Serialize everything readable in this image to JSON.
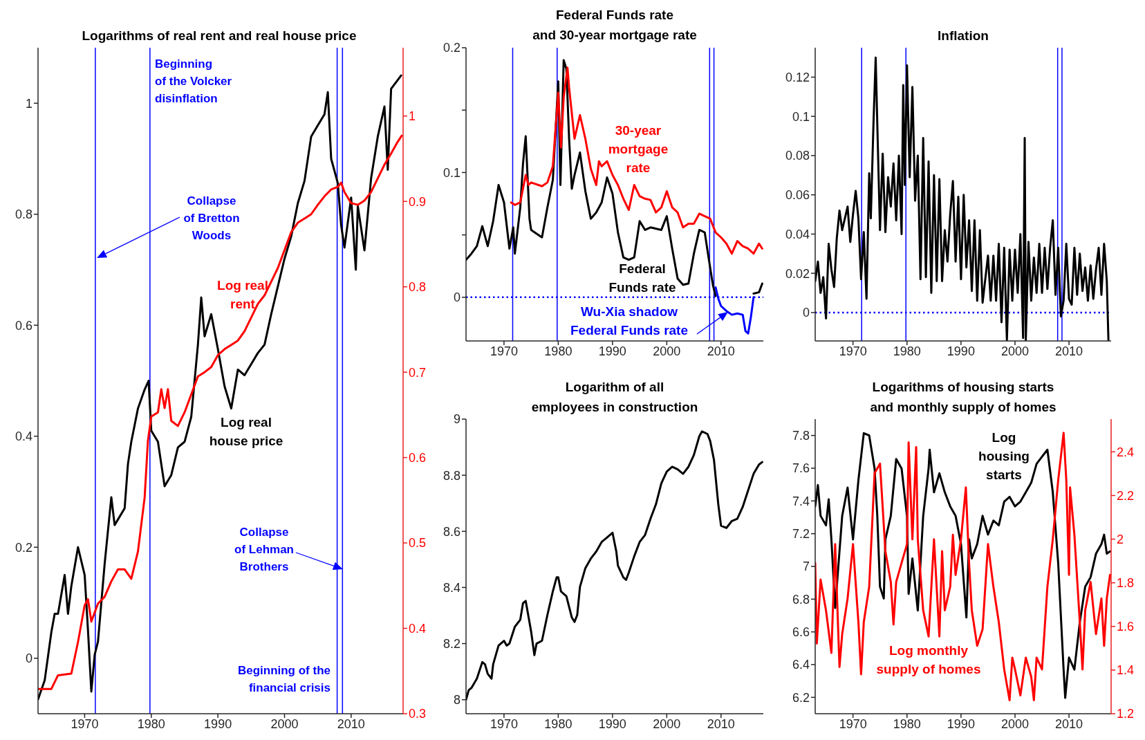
{
  "chart_data": [
    {
      "type": "line",
      "title": "Logarithms of real rent and real house price",
      "xlim": [
        1963,
        2017.8
      ],
      "xticks": [
        1970,
        1980,
        1990,
        2000,
        2010
      ],
      "ylim": [
        -0.1,
        1.1
      ],
      "yticks": [
        0,
        0.2,
        0.4,
        0.6,
        0.8,
        1
      ],
      "y2lim": [
        0.3,
        1.08
      ],
      "y2ticks": [
        0.3,
        0.4,
        0.5,
        0.6,
        0.7,
        0.8,
        0.9,
        1
      ],
      "series": [
        {
          "name": "Log real\nhouse price",
          "color": "#000000",
          "x": [
            1963,
            1964,
            1965,
            1965.5,
            1966,
            1967,
            1967.5,
            1968,
            1969,
            1970,
            1970.5,
            1971,
            1971.5,
            1972,
            1973,
            1974,
            1974.5,
            1975,
            1976,
            1976.5,
            1977,
            1978,
            1979,
            1979.6,
            1980,
            1981,
            1982,
            1983,
            1984,
            1985,
            1986,
            1987,
            1987.5,
            1988,
            1989,
            1990,
            1991,
            1992,
            1993,
            1994,
            1995,
            1996,
            1997,
            1998,
            1999,
            2000,
            2001,
            2002,
            2003,
            2004,
            2005,
            2006,
            2006.5,
            2007,
            2008,
            2008.5,
            2009,
            2010,
            2010.7,
            2011,
            2012,
            2013,
            2014,
            2015,
            2015.5,
            2016,
            2017,
            2017.5
          ],
          "values": [
            -0.074,
            -0.04,
            0.047,
            0.08,
            0.08,
            0.15,
            0.08,
            0.13,
            0.2,
            0.15,
            0.05,
            -0.06,
            0.006,
            0.03,
            0.17,
            0.29,
            0.24,
            0.25,
            0.27,
            0.35,
            0.39,
            0.45,
            0.484,
            0.5,
            0.41,
            0.39,
            0.31,
            0.33,
            0.38,
            0.39,
            0.435,
            0.565,
            0.65,
            0.58,
            0.62,
            0.557,
            0.49,
            0.45,
            0.52,
            0.51,
            0.53,
            0.55,
            0.565,
            0.62,
            0.67,
            0.72,
            0.76,
            0.82,
            0.86,
            0.94,
            0.96,
            0.98,
            1.02,
            0.9,
            0.856,
            0.78,
            0.74,
            0.83,
            0.7,
            0.815,
            0.735,
            0.865,
            0.94,
            0.994,
            0.88,
            1.026,
            1.042,
            1.05
          ]
        },
        {
          "name": "Log real\nrent",
          "color": "#ff0000",
          "axis": "y2",
          "x": [
            1963,
            1965,
            1966,
            1968,
            1969,
            1970,
            1970.5,
            1971,
            1972,
            1973,
            1974,
            1975,
            1976,
            1977,
            1978,
            1979,
            1979.5,
            1980,
            1981,
            1981.5,
            1982,
            1982.5,
            1983,
            1984,
            1985,
            1986,
            1987,
            1988,
            1989,
            1990,
            1991,
            1992,
            1993,
            1994,
            1995,
            1996,
            1997,
            1998,
            1999,
            2000,
            2001,
            2002,
            2003,
            2004,
            2005,
            2006,
            2007,
            2008,
            2008.5,
            2009,
            2010,
            2011,
            2012,
            2013,
            2014,
            2015,
            2016,
            2017,
            2017.6
          ],
          "values": [
            0.329,
            0.329,
            0.345,
            0.347,
            0.384,
            0.427,
            0.434,
            0.408,
            0.429,
            0.437,
            0.455,
            0.469,
            0.469,
            0.458,
            0.49,
            0.553,
            0.62,
            0.648,
            0.653,
            0.68,
            0.658,
            0.68,
            0.643,
            0.637,
            0.653,
            0.674,
            0.695,
            0.7,
            0.706,
            0.72,
            0.727,
            0.732,
            0.737,
            0.748,
            0.764,
            0.78,
            0.79,
            0.806,
            0.822,
            0.843,
            0.864,
            0.875,
            0.88,
            0.885,
            0.896,
            0.906,
            0.914,
            0.917,
            0.922,
            0.911,
            0.898,
            0.896,
            0.901,
            0.911,
            0.927,
            0.943,
            0.956,
            0.97,
            0.977
          ]
        }
      ],
      "ref_lines": [
        {
          "axis": "x",
          "value": 1971.6,
          "color": "#0000ff"
        },
        {
          "axis": "x",
          "value": 1979.8,
          "color": "#0000ff"
        },
        {
          "axis": "x",
          "value": 2007.9,
          "color": "#0000ff"
        },
        {
          "axis": "x",
          "value": 2008.7,
          "color": "#0000ff"
        }
      ],
      "annotations": [
        "Beginning\nof the Volcker\ndisinflation",
        "Collapse\nof Bretton\nWoods",
        "Collapse\nof Lehman\nBrothers",
        "Beginning of the\nfinancial crisis"
      ]
    },
    {
      "type": "line",
      "title": "Federal Funds rate\nand 30-year mortgage rate",
      "xlim": [
        1963,
        2017.8
      ],
      "xticks": [
        1970,
        1980,
        1990,
        2000,
        2010
      ],
      "ylim": [
        -0.035,
        0.2
      ],
      "yticks": [
        0,
        {
          "value": 0.05,
          "label": null
        },
        0.1,
        {
          "value": 0.15,
          "label": null
        },
        0.2
      ],
      "series": [
        {
          "name": "Federal\nFunds rate",
          "color": "#000000",
          "x": [
            1963,
            1964,
            1965,
            1966,
            1967,
            1968,
            1969,
            1970,
            1971,
            1971.7,
            1972,
            1973,
            1973.5,
            1974,
            1974.7,
            1975,
            1977,
            1978,
            1979,
            1980,
            1980.4,
            1981,
            1981.5,
            1982,
            1982.5,
            1983,
            1984,
            1985,
            1986,
            1987,
            1988,
            1989,
            1990,
            1991,
            1992,
            1993,
            1994,
            1995,
            1996,
            1997,
            1999,
            2000,
            2001,
            2002,
            2003,
            2004,
            2005,
            2006,
            2007,
            2007.7,
            2008.5,
            2009,
            2009.5,
            2016,
            2017,
            2017.6
          ],
          "values": [
            0.03,
            0.035,
            0.041,
            0.057,
            0.041,
            0.061,
            0.09,
            0.076,
            0.039,
            0.056,
            0.035,
            0.072,
            0.107,
            0.129,
            0.063,
            0.054,
            0.048,
            0.072,
            0.094,
            0.173,
            0.09,
            0.19,
            0.183,
            0.127,
            0.087,
            0.098,
            0.116,
            0.085,
            0.063,
            0.068,
            0.076,
            0.096,
            0.083,
            0.052,
            0.032,
            0.03,
            0.032,
            0.061,
            0.054,
            0.056,
            0.054,
            0.065,
            0.039,
            0.015,
            0.01,
            0.011,
            0.035,
            0.054,
            0.052,
            0.032,
            0.01,
            0.001,
            null,
            0.003,
            0.004,
            0.011
          ]
        },
        {
          "name": "30-year\nmortgage\nrate",
          "color": "#ff0000",
          "x": [
            1971.3,
            1972,
            1973,
            1974,
            1974.5,
            1975,
            1977,
            1978,
            1979,
            1980,
            1980.5,
            1981,
            1981.7,
            1982,
            1983,
            1984,
            1985,
            1986,
            1987,
            1987.5,
            1988,
            1989,
            1990,
            1991,
            1992,
            1993,
            1994,
            1995,
            1996,
            1997,
            1998,
            1999,
            2000,
            2001,
            2002,
            2003,
            2004,
            2005,
            2006,
            2007,
            2008,
            2009,
            2010,
            2011,
            2012,
            2013,
            2014,
            2015,
            2016,
            2017,
            2017.6
          ],
          "values": [
            0.076,
            0.074,
            0.076,
            0.098,
            0.09,
            0.092,
            0.089,
            0.092,
            0.105,
            0.164,
            0.12,
            0.16,
            0.184,
            0.168,
            0.127,
            0.146,
            0.127,
            0.103,
            0.09,
            0.109,
            0.105,
            0.109,
            0.098,
            0.09,
            0.079,
            0.07,
            0.09,
            0.081,
            0.079,
            0.078,
            0.068,
            0.072,
            0.085,
            0.072,
            0.068,
            0.056,
            0.059,
            0.059,
            0.067,
            0.065,
            0.063,
            0.052,
            0.048,
            0.043,
            0.035,
            0.045,
            0.041,
            0.039,
            0.035,
            0.043,
            0.039
          ]
        },
        {
          "name": "Wu-Xia shadow\nFederal Funds rate",
          "color": "#0000ff",
          "x": [
            2009,
            2009.5,
            2010,
            2011,
            2012,
            2013,
            2014,
            2014.5,
            2015,
            2015.5,
            2016
          ],
          "values": [
            0.008,
            -0.001,
            -0.007,
            -0.011,
            -0.014,
            -0.013,
            -0.014,
            -0.027,
            -0.029,
            -0.016,
            0.0
          ]
        }
      ],
      "ref_lines": [
        {
          "axis": "x",
          "value": 1971.6,
          "color": "#0000ff"
        },
        {
          "axis": "x",
          "value": 1979.8,
          "color": "#0000ff"
        },
        {
          "axis": "x",
          "value": 2007.9,
          "color": "#0000ff"
        },
        {
          "axis": "x",
          "value": 2008.7,
          "color": "#0000ff"
        },
        {
          "axis": "y",
          "value": 0,
          "color": "#0000ff",
          "line_style": "dotted"
        }
      ]
    },
    {
      "type": "line",
      "title": "Inflation",
      "xlim": [
        1963,
        2017.8
      ],
      "xticks": [
        1970,
        1980,
        1990,
        2000,
        2010
      ],
      "ylim": [
        -0.0145,
        0.135
      ],
      "yticks": [
        0,
        0.02,
        0.04,
        0.06,
        0.08,
        0.1,
        0.12
      ],
      "series": [
        {
          "color": "#000000",
          "x": [
            1963,
            1963.5,
            1964,
            1964.5,
            1965,
            1965.5,
            1966,
            1966.5,
            1967,
            1967.5,
            1968,
            1969,
            1969.5,
            1970,
            1970.5,
            1971,
            1971.5,
            1972,
            1972.5,
            1973,
            1973.3,
            1973.8,
            1974.2,
            1974.6,
            1975,
            1975.5,
            1976,
            1976.5,
            1977,
            1977.5,
            1978,
            1978.5,
            1979,
            1979.3,
            1979.6,
            1980,
            1980.5,
            1981,
            1981.5,
            1982,
            1982.5,
            1983,
            1983.5,
            1984,
            1984.5,
            1985,
            1985.5,
            1986,
            1986.5,
            1987,
            1987.5,
            1988,
            1988.5,
            1989,
            1989.5,
            1990,
            1990.5,
            1991,
            1991.5,
            1992,
            1992.5,
            1993,
            1993.5,
            1994,
            1995,
            1995.5,
            1996,
            1996.5,
            1997,
            1997.5,
            1998,
            1998.5,
            1999,
            1999.5,
            2000,
            2000.5,
            2001,
            2001.5,
            2001.8,
            2002,
            2002.5,
            2003,
            2003.5,
            2004,
            2004.5,
            2005,
            2005.5,
            2006,
            2006.5,
            2007,
            2007.5,
            2008,
            2008.5,
            2009,
            2009.5,
            2010,
            2010.5,
            2011,
            2011.5,
            2012,
            2012.5,
            2013,
            2013.5,
            2014,
            2014.5,
            2015,
            2015.5,
            2016,
            2016.5,
            2017,
            2017.3
          ],
          "values": [
            0.016,
            0.026,
            0.01,
            0.018,
            -0.003,
            0.035,
            0.022,
            0.013,
            0.038,
            0.052,
            0.042,
            0.054,
            0.036,
            0.05,
            0.062,
            0.048,
            0.017,
            0.041,
            0.007,
            0.071,
            0.048,
            0.097,
            0.13,
            0.085,
            0.042,
            0.081,
            0.041,
            0.069,
            0.054,
            0.076,
            0.047,
            0.08,
            0.04,
            0.116,
            0.065,
            0.126,
            0.069,
            0.115,
            0.057,
            0.08,
            0.017,
            0.089,
            0.018,
            0.077,
            0.01,
            0.07,
            0.016,
            0.068,
            0.016,
            0.042,
            0.026,
            0.05,
            0.067,
            0.026,
            0.059,
            0.017,
            0.06,
            0.023,
            0.047,
            0.011,
            0.047,
            0.006,
            0.042,
            0.005,
            0.029,
            0.006,
            0.029,
            0.006,
            0.035,
            -0.005,
            0.033,
            -0.014,
            0.032,
            0.006,
            0.032,
            0.01,
            0.04,
            -0.013,
            0.089,
            -0.014,
            0.036,
            0.006,
            0.028,
            0.01,
            0.035,
            0.01,
            0.033,
            0.012,
            0.033,
            0.047,
            0.009,
            0.033,
            -0.002,
            0.006,
            0.035,
            0.007,
            0.004,
            0.033,
            0.009,
            0.03,
            0.011,
            0.023,
            0.006,
            0.024,
            0.007,
            0.022,
            0.033,
            0.009,
            0.035,
            0.016,
            -0.014
          ]
        }
      ],
      "ref_lines": [
        {
          "axis": "x",
          "value": 1971.6,
          "color": "#0000ff"
        },
        {
          "axis": "x",
          "value": 1979.8,
          "color": "#0000ff"
        },
        {
          "axis": "x",
          "value": 2007.9,
          "color": "#0000ff"
        },
        {
          "axis": "x",
          "value": 2008.7,
          "color": "#0000ff"
        },
        {
          "axis": "y",
          "value": 0,
          "color": "#0000ff",
          "line_style": "dotted"
        }
      ]
    },
    {
      "type": "line",
      "title": "Logarithm of all\nemployees in construction",
      "xlim": [
        1963,
        2017.8
      ],
      "xticks": [
        1970,
        1980,
        1990,
        2000,
        2010
      ],
      "ylim": [
        7.95,
        9
      ],
      "yticks": [
        8,
        8.2,
        8.4,
        8.6,
        8.8,
        9
      ],
      "series": [
        {
          "color": "#000000",
          "x": [
            1963,
            1963.5,
            1964,
            1965,
            1966,
            1966.5,
            1967,
            1967.7,
            1968,
            1969,
            1970,
            1970.5,
            1971,
            1972,
            1973,
            1973.5,
            1974,
            1975,
            1975.6,
            1976,
            1977,
            1978,
            1979,
            1979.7,
            1980,
            1980.5,
            1981.5,
            1982.5,
            1983,
            1983.5,
            1984,
            1985,
            1986,
            1987,
            1988,
            1989,
            1990,
            1990.7,
            1991,
            1992,
            1992.5,
            1993,
            1994,
            1995,
            1996,
            1997,
            1998,
            1999,
            2000,
            2001,
            2002,
            2003,
            2004,
            2005,
            2006,
            2006.5,
            2007.5,
            2008,
            2008.7,
            2009.5,
            2010,
            2011,
            2012,
            2013,
            2014,
            2015,
            2016,
            2017,
            2017.6
          ],
          "values": [
            8.0,
            8.034,
            8.042,
            8.075,
            8.134,
            8.126,
            8.092,
            8.075,
            8.126,
            8.193,
            8.21,
            8.193,
            8.2,
            8.26,
            8.285,
            8.344,
            8.352,
            8.243,
            8.159,
            8.2,
            8.21,
            8.302,
            8.386,
            8.436,
            8.436,
            8.386,
            8.369,
            8.293,
            8.277,
            8.302,
            8.402,
            8.469,
            8.503,
            8.528,
            8.562,
            8.578,
            8.595,
            8.528,
            8.478,
            8.436,
            8.427,
            8.453,
            8.511,
            8.562,
            8.587,
            8.645,
            8.696,
            8.771,
            8.813,
            8.83,
            8.821,
            8.805,
            8.83,
            8.872,
            8.939,
            8.956,
            8.947,
            8.922,
            8.855,
            8.696,
            8.62,
            8.612,
            8.637,
            8.645,
            8.687,
            8.746,
            8.805,
            8.838,
            8.847
          ]
        }
      ]
    },
    {
      "type": "line",
      "title": "Logarithms of housing starts\nand monthly supply of homes",
      "xlim": [
        1963,
        2017.8
      ],
      "xticks": [
        1970,
        1980,
        1990,
        2000,
        2010
      ],
      "ylim": [
        6.1,
        7.9
      ],
      "yticks": [
        6.2,
        6.4,
        6.6,
        6.8,
        7,
        7.2,
        7.4,
        7.6,
        7.8
      ],
      "y2lim": [
        1.2,
        2.55
      ],
      "y2ticks": [
        1.2,
        1.4,
        1.6,
        1.8,
        2,
        2.2,
        2.4
      ],
      "series": [
        {
          "name": "Log\nhousing\nstarts",
          "color": "#000000",
          "x": [
            1963,
            1963.5,
            1964,
            1965,
            1965.5,
            1966,
            1966.7,
            1967,
            1968,
            1969,
            1970,
            1971,
            1972,
            1973,
            1974,
            1974.5,
            1975,
            1975.7,
            1976,
            1977,
            1978,
            1979,
            1980,
            1980.3,
            1981,
            1982,
            1983,
            1984,
            1984.2,
            1985,
            1986,
            1987,
            1988,
            1989,
            1990,
            1991,
            1991.5,
            1992,
            1993,
            1994,
            1995,
            1996,
            1997,
            1998,
            1999,
            2000,
            2001,
            2002,
            2003,
            2004,
            2005,
            2006,
            2007,
            2008,
            2009,
            2009.3,
            2010,
            2011,
            2012,
            2013,
            2014,
            2015,
            2016,
            2016.5,
            2017,
            2017.6
          ],
          "values": [
            7.367,
            7.497,
            7.309,
            7.251,
            7.41,
            7.165,
            6.746,
            6.876,
            7.309,
            7.482,
            7.165,
            7.526,
            7.814,
            7.8,
            7.598,
            7.309,
            6.876,
            6.804,
            7.165,
            7.309,
            7.656,
            7.598,
            7.309,
            6.832,
            7.049,
            6.731,
            7.309,
            7.598,
            7.713,
            7.453,
            7.569,
            7.453,
            7.367,
            7.309,
            7.136,
            6.688,
            7.165,
            7.049,
            7.136,
            7.309,
            7.194,
            7.28,
            7.251,
            7.396,
            7.425,
            7.367,
            7.396,
            7.453,
            7.511,
            7.627,
            7.67,
            7.713,
            7.453,
            7.02,
            6.37,
            6.197,
            6.443,
            6.37,
            6.659,
            6.876,
            6.934,
            7.078,
            7.136,
            7.194,
            7.078,
            7.092
          ]
        },
        {
          "name": "Log monthly\nsupply of homes",
          "color": "#ff0000",
          "axis": "y2",
          "x": [
            1963,
            1963.3,
            1964,
            1965,
            1966,
            1966.7,
            1967.5,
            1968,
            1969,
            1970,
            1971,
            1971.5,
            1972,
            1973,
            1974,
            1975,
            1976,
            1977,
            1977.5,
            1978,
            1979,
            1980,
            1980.3,
            1981,
            1981.7,
            1982,
            1983,
            1984,
            1985,
            1986,
            1986.5,
            1987,
            1988,
            1988.5,
            1989,
            1990,
            1990.9,
            1991.5,
            1992,
            1993,
            1994,
            1995,
            1996,
            1997,
            1998,
            1999,
            1999.5,
            2000,
            2001,
            2002,
            2003,
            2003.5,
            2004,
            2005,
            2006,
            2007,
            2008,
            2009,
            2009.5,
            2010,
            2010.2,
            2011,
            2012,
            2012.5,
            2013,
            2014,
            2015,
            2016,
            2016.5,
            2017,
            2017.6
          ],
          "values": [
            1.891,
            1.522,
            1.815,
            1.674,
            1.479,
            1.977,
            1.414,
            1.565,
            1.728,
            1.977,
            1.62,
            1.381,
            1.62,
            1.782,
            2.302,
            2.346,
            1.945,
            1.804,
            1.609,
            1.804,
            1.891,
            1.977,
            2.443,
            1.999,
            2.422,
            1.999,
            1.674,
            1.554,
            1.999,
            1.554,
            1.945,
            1.674,
            1.782,
            2.02,
            1.836,
            1.999,
            2.237,
            1.891,
            1.674,
            1.511,
            1.587,
            1.977,
            1.782,
            1.62,
            1.403,
            1.262,
            1.457,
            1.403,
            1.284,
            1.457,
            1.37,
            1.262,
            1.457,
            1.403,
            1.782,
            1.999,
            2.27,
            2.487,
            2.27,
            1.836,
            2.237,
            2.02,
            1.62,
            1.403,
            1.674,
            1.804,
            1.565,
            1.728,
            1.511,
            1.728,
            1.836
          ]
        }
      ]
    }
  ]
}
